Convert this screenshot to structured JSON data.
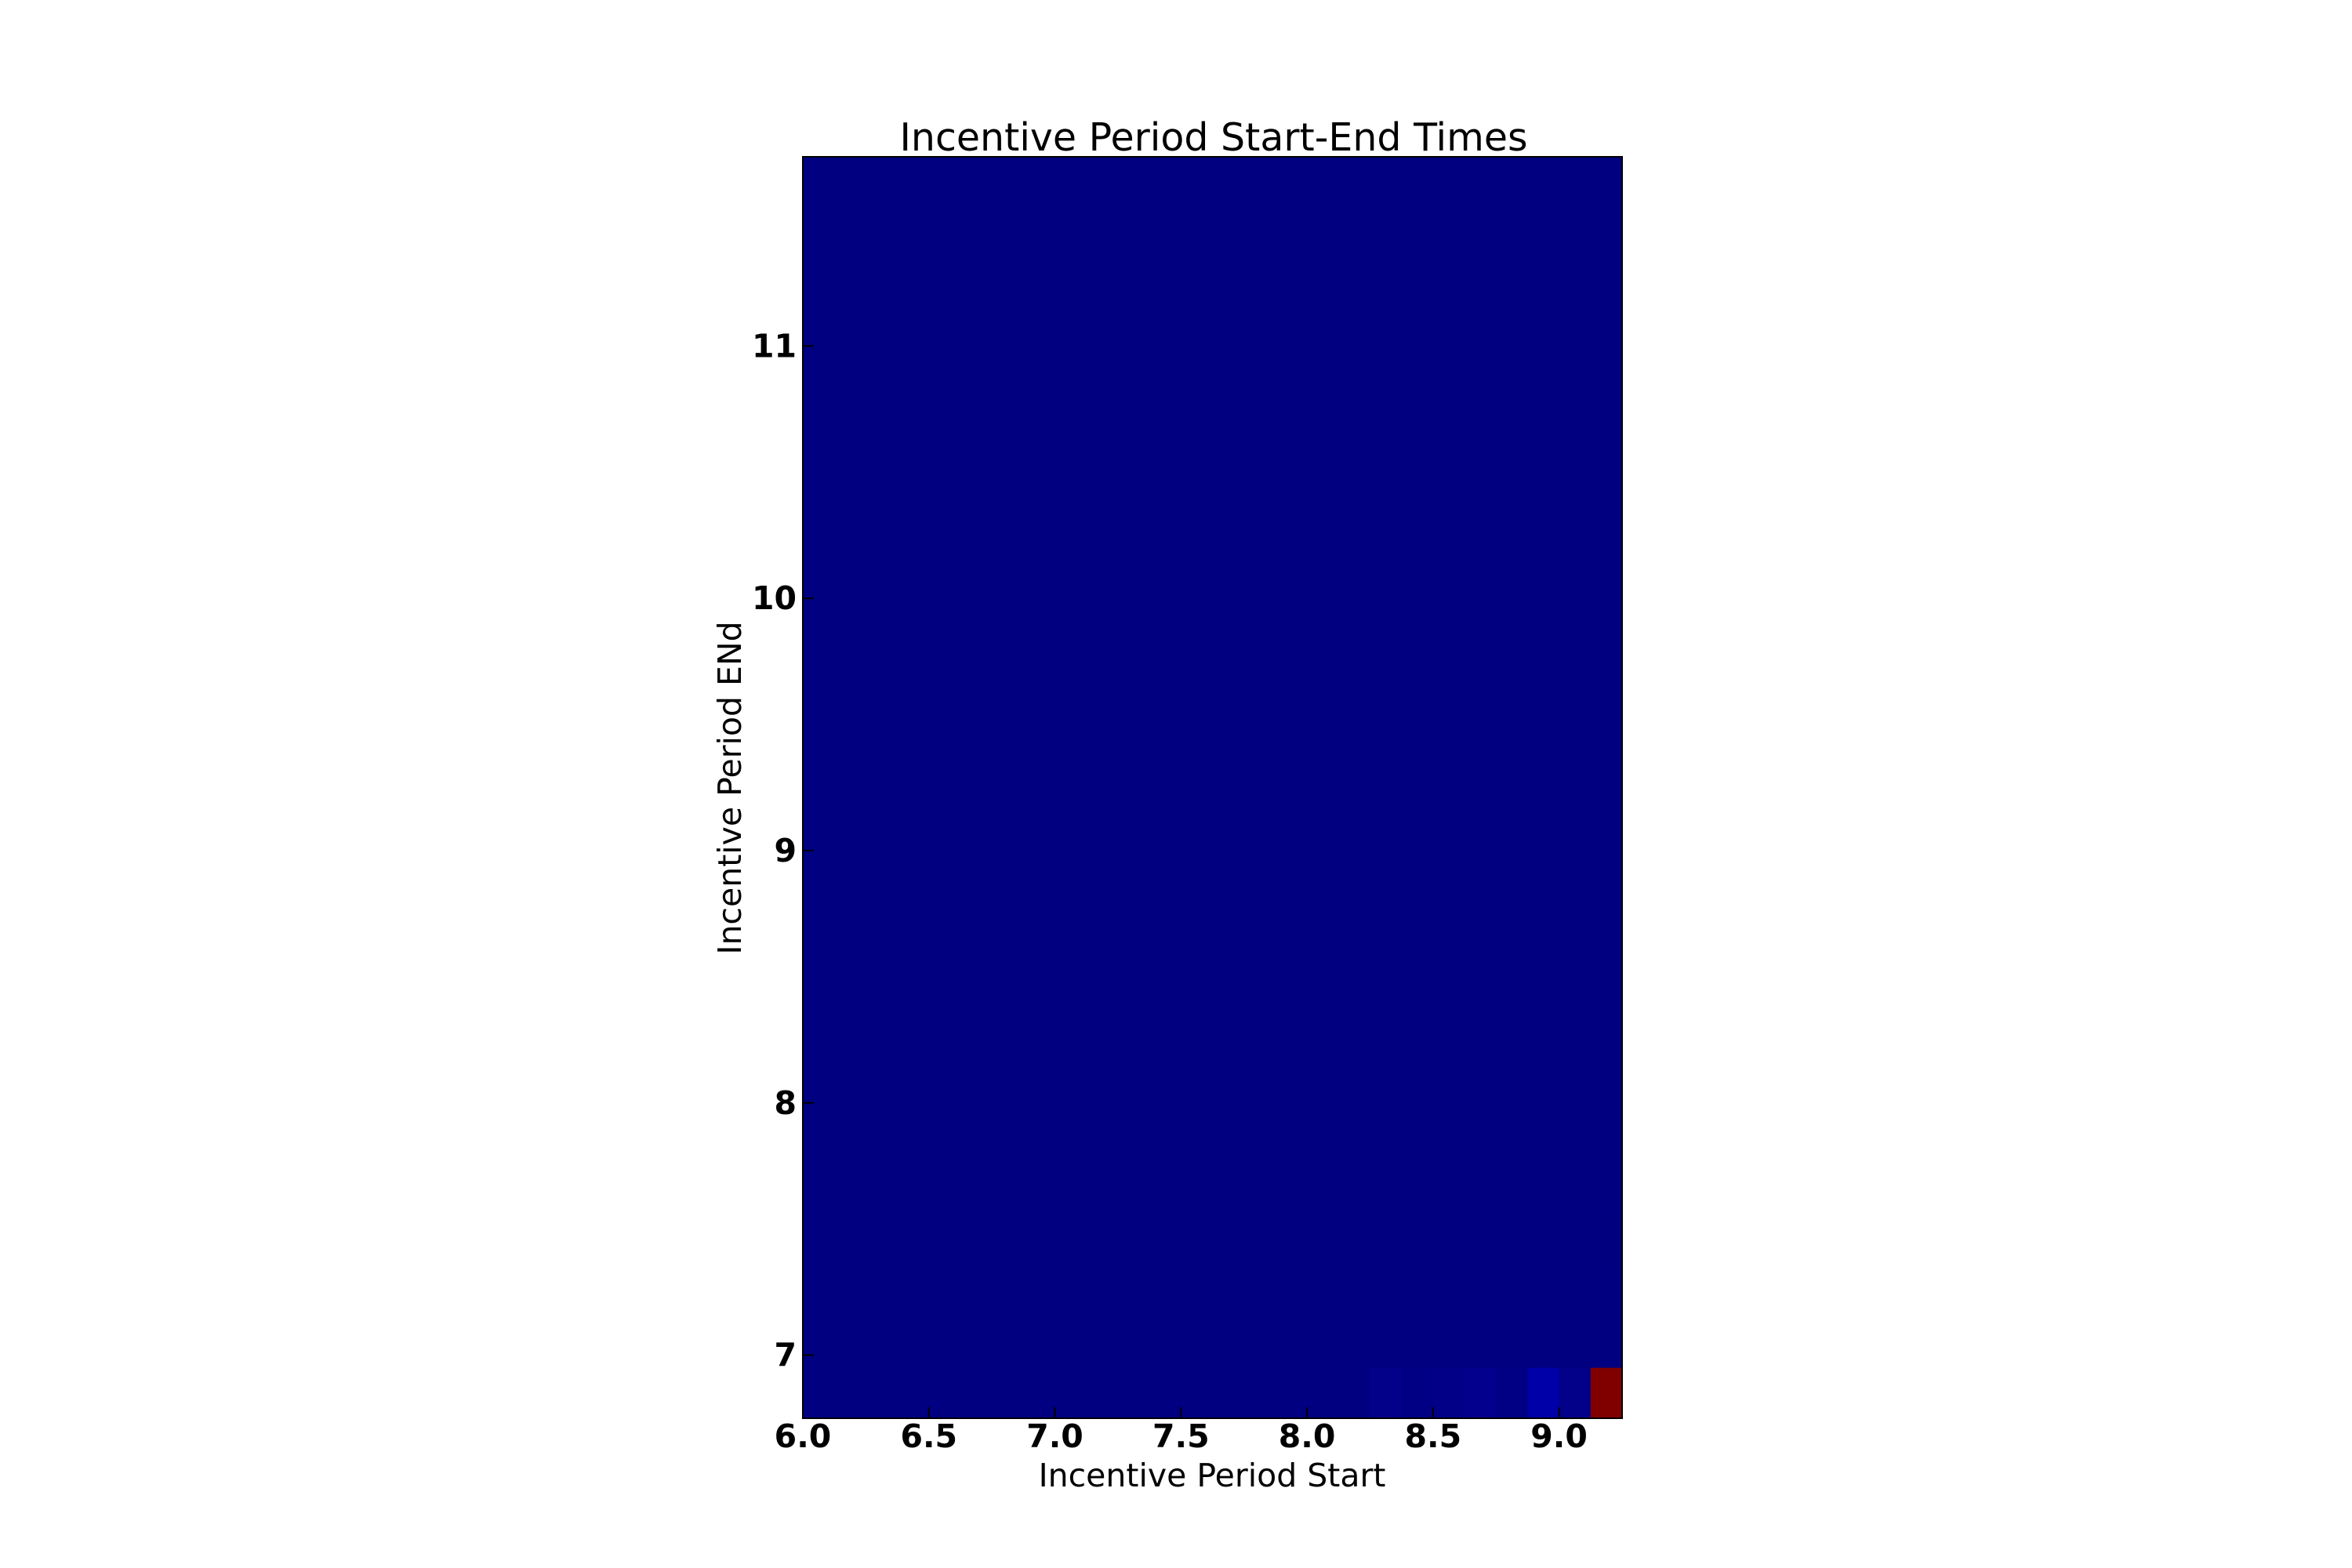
{
  "chart_data": {
    "type": "heatmap",
    "title": "Incentive Period Start-End Times",
    "xlabel": "Incentive Period Start",
    "ylabel": "Incentive Period ENd",
    "xlim": [
      6.0,
      9.25
    ],
    "ylim": [
      6.75,
      11.75
    ],
    "x_ticks": [
      "6.0",
      "6.5",
      "7.0",
      "7.5",
      "8.0",
      "8.5",
      "9.0"
    ],
    "y_ticks": [
      "7",
      "8",
      "9",
      "10",
      "11"
    ],
    "grid": false,
    "legend": "none",
    "colormap": "jet",
    "background_value_color": "#000080",
    "cell_width": 0.125,
    "cell_height": 0.2,
    "cells": [
      {
        "x": 8.25,
        "y": 6.85,
        "color": "#03008a"
      },
      {
        "x": 8.375,
        "y": 6.85,
        "color": "#010084"
      },
      {
        "x": 8.5,
        "y": 6.85,
        "color": "#020087"
      },
      {
        "x": 8.625,
        "y": 6.85,
        "color": "#04008e"
      },
      {
        "x": 8.75,
        "y": 6.85,
        "color": "#010084"
      },
      {
        "x": 8.875,
        "y": 6.85,
        "color": "#0000a8"
      },
      {
        "x": 9.0,
        "y": 6.85,
        "color": "#030089"
      },
      {
        "x": 9.125,
        "y": 6.85,
        "color": "#800000"
      },
      {
        "x": 9.125,
        "y": 7.45,
        "color": "#01007f"
      }
    ]
  }
}
